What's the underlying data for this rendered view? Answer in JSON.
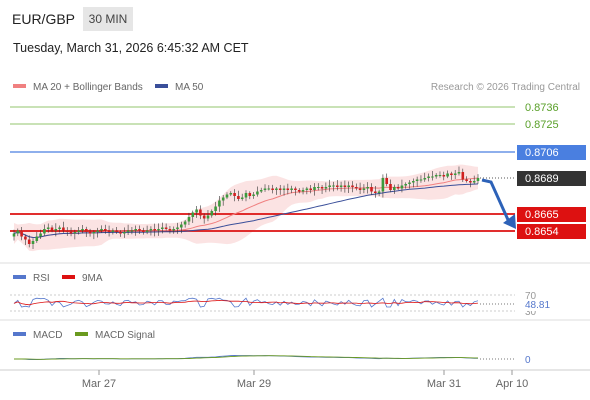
{
  "header": {
    "symbol": "EUR/GBP",
    "timeframe": "30 MIN",
    "datetime": "Tuesday, March 31, 2026 6:45:32 AM CET"
  },
  "legend": {
    "ma20": "MA 20 + Bollinger Bands",
    "ma50": "MA 50",
    "credit": "Research © 2026 Trading Central",
    "rsi": "RSI",
    "rsi_ma": "9MA",
    "macd": "MACD",
    "macd_signal": "MACD Signal"
  },
  "colors": {
    "resistance2": "#6fb33b",
    "resistance1": "#4a7fe0",
    "support": "#dd1111",
    "price": "#333333",
    "ma20": "#f08080",
    "ma50": "#3a4f9a",
    "band_fill": "#fbe0e0",
    "candle_up": "#3c9a3c",
    "candle_down": "#d02020",
    "arrow": "#2d62b8",
    "rsi_line": "#5577cc",
    "macd_line": "#5577cc",
    "macd_signal_line": "#6a9a1f"
  },
  "chart_data": [
    {
      "type": "candlestick",
      "title": "EUR/GBP",
      "x_ticks": [
        "Mar 27",
        "Mar 29",
        "Mar 31",
        "Apr 10"
      ],
      "price_axis_labels": [
        "0.8736",
        "0.8725",
        "0.8706",
        "0.8689",
        "0.8665",
        "0.8654"
      ],
      "levels": [
        {
          "name": "resistance_2",
          "value": 0.8736
        },
        {
          "name": "resistance_1",
          "value": 0.8725
        },
        {
          "name": "pivot",
          "value": 0.8706
        },
        {
          "name": "last_price",
          "value": 0.8689
        },
        {
          "name": "support_1",
          "value": 0.8665
        },
        {
          "name": "support_2",
          "value": 0.8654
        }
      ],
      "forecast": {
        "direction": "down",
        "from": 0.8689,
        "to": 0.8654
      },
      "ylim": [
        0.864,
        0.8745
      ],
      "close": [
        0.8652,
        0.8654,
        0.865,
        0.8648,
        0.8645,
        0.8647,
        0.865,
        0.8652,
        0.8655,
        0.8656,
        0.8654,
        0.8655,
        0.8656,
        0.8654,
        0.8653,
        0.8652,
        0.8653,
        0.8654,
        0.8655,
        0.8653,
        0.8652,
        0.8653,
        0.8654,
        0.8655,
        0.8654,
        0.8653,
        0.8654,
        0.8653,
        0.8652,
        0.8653,
        0.8654,
        0.8654,
        0.8655,
        0.8654,
        0.8653,
        0.8654,
        0.8655,
        0.8654,
        0.8655,
        0.8656,
        0.8655,
        0.8654,
        0.8655,
        0.8656,
        0.8658,
        0.866,
        0.8663,
        0.8666,
        0.8668,
        0.8664,
        0.8662,
        0.8664,
        0.8667,
        0.867,
        0.8674,
        0.8676,
        0.8678,
        0.8679,
        0.8677,
        0.8675,
        0.8676,
        0.8679,
        0.8677,
        0.8678,
        0.868,
        0.8681,
        0.8682,
        0.8682,
        0.8681,
        0.8682,
        0.8681,
        0.8682,
        0.8681,
        0.8682,
        0.8681,
        0.868,
        0.8681,
        0.8682,
        0.8681,
        0.8683,
        0.8683,
        0.8682,
        0.8683,
        0.8684,
        0.8684,
        0.8683,
        0.8684,
        0.8683,
        0.8684,
        0.8683,
        0.8682,
        0.8681,
        0.8682,
        0.8683,
        0.868,
        0.8679,
        0.868,
        0.8689,
        0.8685,
        0.8681,
        0.8683,
        0.8682,
        0.8684,
        0.8685,
        0.8686,
        0.8687,
        0.8688,
        0.8688,
        0.8689,
        0.869,
        0.869,
        0.8691,
        0.8691,
        0.869,
        0.8692,
        0.8691,
        0.8692,
        0.8693,
        0.8688,
        0.8687,
        0.8686,
        0.8687,
        0.8689
      ]
    },
    {
      "type": "line",
      "title": "RSI",
      "series": [
        {
          "name": "RSI"
        },
        {
          "name": "9MA"
        }
      ],
      "y_ticks": [
        70,
        30
      ],
      "last_value": 48.81
    },
    {
      "type": "line",
      "title": "MACD",
      "series": [
        {
          "name": "MACD"
        },
        {
          "name": "MACD Signal"
        }
      ],
      "last_value": 0.0
    }
  ]
}
